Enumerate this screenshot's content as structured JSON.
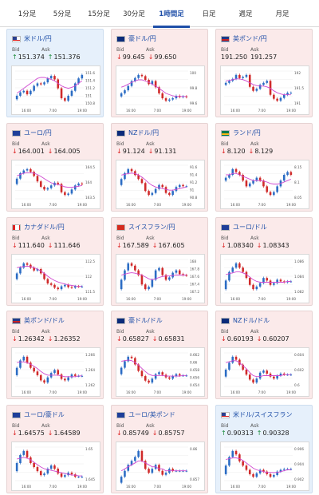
{
  "tabs": [
    {
      "label": "1分足",
      "active": false
    },
    {
      "label": "5分足",
      "active": false
    },
    {
      "label": "15分足",
      "active": false
    },
    {
      "label": "30分足",
      "active": false
    },
    {
      "label": "1時間足",
      "active": true
    },
    {
      "label": "日足",
      "active": false
    },
    {
      "label": "週足",
      "active": false
    },
    {
      "label": "月足",
      "active": false
    }
  ],
  "labels": {
    "bid": "Bid",
    "ask": "Ask"
  },
  "colors": {
    "up_candle": "#2b6cc4",
    "down_candle": "#d02a2a",
    "ma_line": "#d048d0",
    "up_arrow": "#1a8a3a",
    "down_arrow": "#d22"
  },
  "cards": [
    {
      "pair": "米ドル/円",
      "flag": "us",
      "dir": "up",
      "bid": "151.374",
      "ask": "151.376",
      "chart": {
        "x_labels": [
          "16:00",
          "7:00",
          "19:00"
        ],
        "y_labels": [
          "151.6",
          "151.4",
          "151.2",
          "151",
          "150.8"
        ],
        "ohlc": [
          150.95,
          151.02,
          151.05,
          150.98,
          151.05,
          151.15,
          151.2,
          151.18,
          151.22,
          151.3,
          151.35,
          151.28,
          151.1,
          150.9,
          150.85,
          150.95,
          151.05,
          151.2,
          151.3,
          151.37
        ],
        "ma": [
          151.0,
          151.05,
          151.1,
          151.15,
          151.2,
          151.25,
          151.3,
          151.32,
          151.32,
          151.3,
          151.28,
          151.25,
          151.2,
          151.15,
          151.12,
          151.1,
          151.12,
          151.15,
          151.2,
          151.25
        ]
      }
    },
    {
      "pair": "豪ドル/円",
      "flag": "au",
      "dir": "down",
      "bid": "99.645",
      "ask": "99.650",
      "chart": {
        "x_labels": [
          "16:00",
          "7:00",
          "19:00"
        ],
        "y_labels": [
          "100",
          "99.8",
          "99.6"
        ],
        "ohlc": [
          99.7,
          99.75,
          99.82,
          99.9,
          99.95,
          100.0,
          99.98,
          99.92,
          99.85,
          99.9,
          99.8,
          99.7,
          99.62,
          99.58,
          99.6,
          99.62,
          99.66,
          99.64,
          99.65,
          99.64
        ],
        "ma": [
          99.8,
          99.82,
          99.85,
          99.88,
          99.9,
          99.92,
          99.92,
          99.9,
          99.88,
          99.85,
          99.82,
          99.78,
          99.74,
          99.7,
          99.68,
          99.66,
          99.65,
          99.65,
          99.65,
          99.65
        ]
      }
    },
    {
      "pair": "英ポンド/円",
      "flag": "gb",
      "dir": "none",
      "bid": "191.250",
      "ask": "191.257",
      "chart": {
        "x_labels": [
          "16:00",
          "7:00",
          "19:00"
        ],
        "y_labels": [
          "192",
          "191.5",
          "191"
        ],
        "ohlc": [
          191.5,
          191.55,
          191.6,
          191.7,
          191.62,
          191.65,
          191.7,
          191.4,
          191.3,
          191.35,
          191.45,
          191.5,
          191.55,
          191.2,
          191.1,
          191.05,
          191.12,
          191.2,
          191.25,
          191.25
        ],
        "ma": [
          191.55,
          191.56,
          191.58,
          191.6,
          191.6,
          191.58,
          191.55,
          191.5,
          191.46,
          191.43,
          191.42,
          191.42,
          191.4,
          191.36,
          191.3,
          191.25,
          191.22,
          191.2,
          191.2,
          191.2
        ]
      }
    },
    {
      "pair": "ユーロ/円",
      "flag": "eu",
      "dir": "down",
      "bid": "164.001",
      "ask": "164.005",
      "chart": {
        "x_labels": [
          "16:00",
          "7:00",
          "19:00"
        ],
        "y_labels": [
          "164.5",
          "164",
          "163.5"
        ],
        "ohlc": [
          164.2,
          164.4,
          164.5,
          164.55,
          164.45,
          164.3,
          164.1,
          163.9,
          163.8,
          163.85,
          163.95,
          164.05,
          164.0,
          163.7,
          163.6,
          163.65,
          163.8,
          163.95,
          164.02,
          164.0
        ],
        "ma": [
          164.3,
          164.35,
          164.4,
          164.42,
          164.42,
          164.4,
          164.35,
          164.28,
          164.2,
          164.12,
          164.05,
          164.0,
          163.98,
          163.95,
          163.9,
          163.88,
          163.88,
          163.9,
          163.92,
          163.95
        ]
      }
    },
    {
      "pair": "NZドル/円",
      "flag": "nz",
      "dir": "down",
      "bid": "91.124",
      "ask": "91.131",
      "chart": {
        "x_labels": [
          "16:00",
          "7:00",
          "19:00"
        ],
        "y_labels": [
          "91.6",
          "91.4",
          "91.2",
          "91",
          "90.8"
        ],
        "ohlc": [
          91.3,
          91.45,
          91.55,
          91.5,
          91.4,
          91.3,
          91.2,
          91.0,
          90.9,
          90.95,
          91.05,
          91.15,
          91.1,
          90.95,
          90.9,
          91.0,
          91.1,
          91.15,
          91.12,
          91.12
        ],
        "ma": [
          91.4,
          91.42,
          91.44,
          91.45,
          91.44,
          91.4,
          91.35,
          91.28,
          91.2,
          91.14,
          91.1,
          91.08,
          91.06,
          91.04,
          91.02,
          91.02,
          91.04,
          91.06,
          91.08,
          91.1
        ]
      }
    },
    {
      "pair": "ランド/円",
      "flag": "za",
      "dir": "down",
      "bid": "8.120",
      "ask": "8.129",
      "chart": {
        "x_labels": [
          "16:00",
          "7:00",
          "19:00"
        ],
        "y_labels": [
          "8.15",
          "8.1",
          "8.05"
        ],
        "ohlc": [
          8.11,
          8.12,
          8.14,
          8.13,
          8.12,
          8.1,
          8.08,
          8.09,
          8.1,
          8.11,
          8.1,
          8.08,
          8.06,
          8.05,
          8.06,
          8.08,
          8.1,
          8.12,
          8.13,
          8.12
        ],
        "ma": [
          8.12,
          8.12,
          8.125,
          8.125,
          8.12,
          8.115,
          8.11,
          8.105,
          8.1,
          8.1,
          8.1,
          8.098,
          8.095,
          8.09,
          8.088,
          8.088,
          8.09,
          8.095,
          8.1,
          8.105
        ]
      }
    },
    {
      "pair": "カナダドル/円",
      "flag": "ca",
      "dir": "down",
      "bid": "111.640",
      "ask": "111.646",
      "chart": {
        "x_labels": [
          "16:00",
          "7:00",
          "19:00"
        ],
        "y_labels": [
          "112.5",
          "112",
          "111.5"
        ],
        "ohlc": [
          112.1,
          112.3,
          112.45,
          112.4,
          112.3,
          112.2,
          112.25,
          112.1,
          111.9,
          111.75,
          111.7,
          111.6,
          111.55,
          111.65,
          111.7,
          111.62,
          111.6,
          111.65,
          111.64,
          111.64
        ],
        "ma": [
          112.3,
          112.32,
          112.34,
          112.35,
          112.34,
          112.3,
          112.25,
          112.18,
          112.1,
          112.0,
          111.92,
          111.85,
          111.8,
          111.76,
          111.73,
          111.7,
          111.68,
          111.66,
          111.65,
          111.65
        ]
      }
    },
    {
      "pair": "スイスフラン/円",
      "flag": "ch",
      "dir": "down",
      "bid": "167.589",
      "ask": "167.605",
      "chart": {
        "x_labels": [
          "16:00",
          "7:00",
          "19:00"
        ],
        "y_labels": [
          "168",
          "167.8",
          "167.6",
          "167.4",
          "167.2"
        ],
        "ohlc": [
          167.5,
          167.7,
          167.85,
          167.8,
          167.7,
          167.6,
          167.4,
          167.3,
          167.35,
          167.5,
          167.7,
          167.75,
          167.6,
          167.5,
          167.55,
          167.65,
          167.7,
          167.62,
          167.6,
          167.59
        ],
        "ma": [
          167.6,
          167.62,
          167.64,
          167.65,
          167.64,
          167.62,
          167.6,
          167.56,
          167.52,
          167.5,
          167.52,
          167.55,
          167.57,
          167.58,
          167.58,
          167.59,
          167.6,
          167.6,
          167.6,
          167.6
        ]
      }
    },
    {
      "pair": "ユーロ/ドル",
      "flag": "eu",
      "dir": "down",
      "bid": "1.08340",
      "ask": "1.08343",
      "chart": {
        "x_labels": [
          "16:00",
          "7:00",
          "19:00"
        ],
        "y_labels": [
          "1.086",
          "1.084",
          "1.082"
        ],
        "ohlc": [
          1.0835,
          1.0845,
          1.085,
          1.0855,
          1.085,
          1.0845,
          1.0838,
          1.083,
          1.0825,
          1.0828,
          1.0832,
          1.0838,
          1.0835,
          1.083,
          1.0832,
          1.0836,
          1.0834,
          1.0833,
          1.0834,
          1.0834
        ],
        "ma": [
          1.0842,
          1.0843,
          1.0844,
          1.0845,
          1.0845,
          1.0844,
          1.0842,
          1.0839,
          1.0836,
          1.0834,
          1.0833,
          1.0833,
          1.0833,
          1.0833,
          1.0833,
          1.0833,
          1.0833,
          1.0833,
          1.0834,
          1.0834
        ]
      }
    },
    {
      "pair": "英ポンド/ドル",
      "flag": "gb",
      "dir": "down",
      "bid": "1.26342",
      "ask": "1.26352",
      "chart": {
        "x_labels": [
          "16:00",
          "7:00",
          "19:00"
        ],
        "y_labels": [
          "1.266",
          "1.264",
          "1.262"
        ],
        "ohlc": [
          1.2645,
          1.2655,
          1.266,
          1.2652,
          1.2645,
          1.264,
          1.2635,
          1.2628,
          1.2625,
          1.2632,
          1.2638,
          1.2642,
          1.2636,
          1.263,
          1.2628,
          1.2632,
          1.2636,
          1.2634,
          1.2634,
          1.2634
        ],
        "ma": [
          1.2652,
          1.2653,
          1.2653,
          1.2652,
          1.265,
          1.2647,
          1.2644,
          1.264,
          1.2637,
          1.2635,
          1.2635,
          1.2635,
          1.2635,
          1.2634,
          1.2633,
          1.2633,
          1.2633,
          1.2633,
          1.2634,
          1.2634
        ]
      }
    },
    {
      "pair": "豪ドル/ドル",
      "flag": "au",
      "dir": "down",
      "bid": "0.65827",
      "ask": "0.65831",
      "chart": {
        "x_labels": [
          "16:00",
          "7:00",
          "19:00"
        ],
        "y_labels": [
          "0.662",
          "0.66",
          "0.658",
          "0.656",
          "0.654"
        ],
        "ohlc": [
          0.6595,
          0.6605,
          0.6612,
          0.661,
          0.66,
          0.659,
          0.6582,
          0.6575,
          0.6572,
          0.6578,
          0.6585,
          0.6588,
          0.6584,
          0.658,
          0.6578,
          0.6582,
          0.6585,
          0.6583,
          0.6583,
          0.6583
        ],
        "ma": [
          0.6605,
          0.6606,
          0.6607,
          0.6606,
          0.6603,
          0.6599,
          0.6594,
          0.6589,
          0.6585,
          0.6583,
          0.6583,
          0.6583,
          0.6583,
          0.6582,
          0.6582,
          0.6582,
          0.6582,
          0.6582,
          0.6583,
          0.6583
        ]
      }
    },
    {
      "pair": "NZドル/ドル",
      "flag": "nz",
      "dir": "down",
      "bid": "0.60193",
      "ask": "0.60207",
      "chart": {
        "x_labels": [
          "16:00",
          "7:00",
          "19:00"
        ],
        "y_labels": [
          "0.604",
          "0.602",
          "0.6"
        ],
        "ohlc": [
          0.6025,
          0.6032,
          0.6038,
          0.6035,
          0.603,
          0.6025,
          0.602,
          0.6015,
          0.6012,
          0.6016,
          0.6022,
          0.6024,
          0.6021,
          0.6018,
          0.6016,
          0.6019,
          0.6021,
          0.602,
          0.602,
          0.602
        ],
        "ma": [
          0.6032,
          0.6033,
          0.6034,
          0.6034,
          0.6032,
          0.6029,
          0.6026,
          0.6022,
          0.6019,
          0.6018,
          0.6018,
          0.6019,
          0.6019,
          0.6019,
          0.6019,
          0.6019,
          0.6019,
          0.602,
          0.602,
          0.602
        ]
      }
    },
    {
      "pair": "ユーロ/豪ドル",
      "flag": "eu",
      "dir": "down",
      "bid": "1.64575",
      "ask": "1.64589",
      "chart": {
        "x_labels": [
          "16:00",
          "7:00",
          "19:00"
        ],
        "y_labels": [
          "1.65",
          "1.645"
        ],
        "ohlc": [
          1.6475,
          1.6485,
          1.649,
          1.6482,
          1.6475,
          1.647,
          1.6465,
          1.646,
          1.6462,
          1.6468,
          1.6472,
          1.6468,
          1.6462,
          1.6458,
          1.646,
          1.6463,
          1.6461,
          1.6458,
          1.6458,
          1.6458
        ],
        "ma": [
          1.648,
          1.6481,
          1.6482,
          1.6481,
          1.6479,
          1.6476,
          1.6473,
          1.647,
          1.6468,
          1.6467,
          1.6466,
          1.6465,
          1.6464,
          1.6463,
          1.6462,
          1.6461,
          1.646,
          1.646,
          1.6459,
          1.6459
        ]
      }
    },
    {
      "pair": "ユーロ/英ポンド",
      "flag": "eu",
      "dir": "down",
      "bid": "0.85749",
      "ask": "0.85757",
      "chart": {
        "x_labels": [
          "16:00",
          "7:00",
          "19:00"
        ],
        "y_labels": [
          "0.86",
          "0.857"
        ],
        "ohlc": [
          0.8572,
          0.8575,
          0.8578,
          0.858,
          0.8582,
          0.8585,
          0.858,
          0.8576,
          0.8574,
          0.8576,
          0.8578,
          0.8575,
          0.8573,
          0.8574,
          0.8576,
          0.8575,
          0.8575,
          0.8575,
          0.8575,
          0.8575
        ],
        "ma": [
          0.8575,
          0.8576,
          0.8577,
          0.8578,
          0.8579,
          0.858,
          0.858,
          0.8579,
          0.8578,
          0.8577,
          0.8577,
          0.8576,
          0.8576,
          0.8575,
          0.8575,
          0.8575,
          0.8575,
          0.8575,
          0.8575,
          0.8575
        ]
      }
    },
    {
      "pair": "米ドル/スイスフラン",
      "flag": "us",
      "dir": "up",
      "bid": "0.90313",
      "ask": "0.90328",
      "chart": {
        "x_labels": [
          "16:00",
          "7:00",
          "19:00"
        ],
        "y_labels": [
          "0.906",
          "0.904",
          "0.902"
        ],
        "ohlc": [
          0.9035,
          0.9045,
          0.9052,
          0.9048,
          0.904,
          0.9035,
          0.903,
          0.9025,
          0.9022,
          0.9026,
          0.903,
          0.9028,
          0.9025,
          0.9022,
          0.9024,
          0.9028,
          0.903,
          0.9031,
          0.9031,
          0.9031
        ],
        "ma": [
          0.9042,
          0.9043,
          0.9044,
          0.9044,
          0.9043,
          0.9041,
          0.9038,
          0.9035,
          0.9032,
          0.903,
          0.9029,
          0.9028,
          0.9027,
          0.9027,
          0.9027,
          0.9027,
          0.9028,
          0.9029,
          0.903,
          0.903
        ]
      }
    }
  ]
}
